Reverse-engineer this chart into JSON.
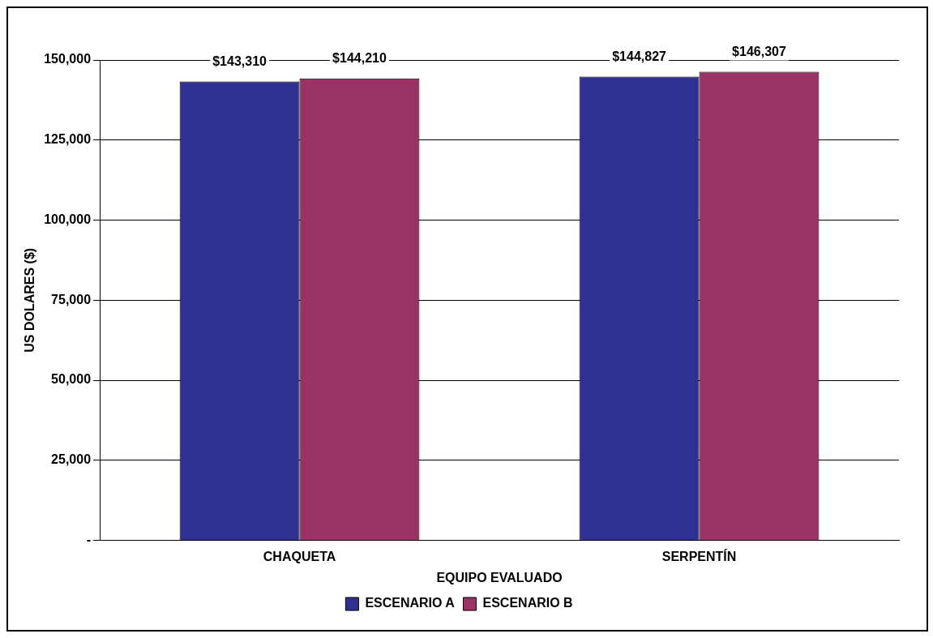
{
  "chart_data": {
    "type": "bar",
    "xlabel": "EQUIPO EVALUADO",
    "ylabel": "US DOLARES ($)",
    "categories": [
      "CHAQUETA",
      "SERPENTÍN"
    ],
    "series": [
      {
        "name": "ESCENARIO A",
        "color": "#2e3192",
        "values": [
          143310,
          144827
        ],
        "value_labels": [
          "$143,310",
          "$144,827"
        ]
      },
      {
        "name": "ESCENARIO B",
        "color": "#993366",
        "values": [
          144210,
          146307
        ],
        "value_labels": [
          "$144,210",
          "$146,307"
        ]
      }
    ],
    "ylim": [
      0,
      150000
    ],
    "yticks": [
      {
        "value": 0,
        "label": "-"
      },
      {
        "value": 25000,
        "label": "25,000"
      },
      {
        "value": 50000,
        "label": "50,000"
      },
      {
        "value": 75000,
        "label": "75,000"
      },
      {
        "value": 100000,
        "label": "100,000"
      },
      {
        "value": 125000,
        "label": "125,000"
      },
      {
        "value": 150000,
        "label": "150,000"
      }
    ],
    "grid": "y",
    "legend": "bottom"
  }
}
